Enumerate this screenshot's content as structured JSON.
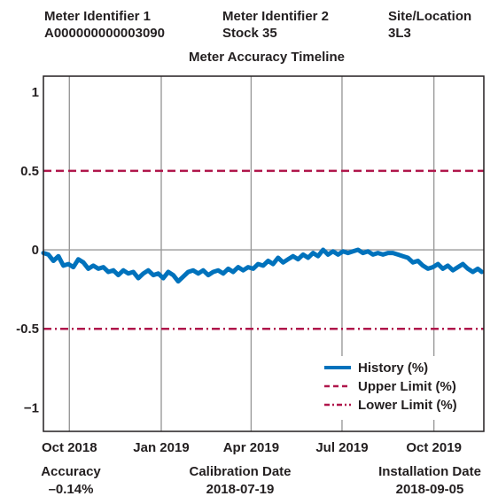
{
  "header": [
    {
      "label": "Meter Identifier 1",
      "value": "A000000000003090"
    },
    {
      "label": "Meter Identifier 2",
      "value": "Stock 35"
    },
    {
      "label": "Site/Location",
      "value": "3L3"
    }
  ],
  "footer": [
    {
      "label": "Accuracy",
      "value": "–0.14%"
    },
    {
      "label": "Calibration Date",
      "value": "2018-07-19"
    },
    {
      "label": "Installation Date",
      "value": "2018-09-05"
    }
  ],
  "colors": {
    "history": "#0072bc",
    "limit": "#b0164b",
    "grid": "#9a9a9a"
  },
  "chart_data": {
    "type": "line",
    "title": "Meter Accuracy Timeline",
    "xlabel": "",
    "ylabel": "",
    "xlim": [
      "2018-09-05",
      "2019-11-20"
    ],
    "ylim": [
      -1.15,
      1.1
    ],
    "x_ticks": [
      {
        "date": "2018-10-01",
        "label": "Oct 2018"
      },
      {
        "date": "2019-01-01",
        "label": "Jan 2019"
      },
      {
        "date": "2019-04-01",
        "label": "Apr 2019"
      },
      {
        "date": "2019-07-01",
        "label": "Jul 2019"
      },
      {
        "date": "2019-10-01",
        "label": "Oct 2019"
      }
    ],
    "y_ticks": [
      {
        "value": 1,
        "label": "1"
      },
      {
        "value": 0.5,
        "label": "0.5"
      },
      {
        "value": 0,
        "label": "0"
      },
      {
        "value": -0.5,
        "label": "-0.5"
      },
      {
        "value": -1,
        "label": "−1"
      }
    ],
    "grid": true,
    "legend_position": "bottom-right",
    "series": [
      {
        "name": "History (%)",
        "style": "solid",
        "x": [
          "2018-09-05",
          "2018-09-10",
          "2018-09-15",
          "2018-09-20",
          "2018-09-25",
          "2018-09-30",
          "2018-10-05",
          "2018-10-10",
          "2018-10-15",
          "2018-10-20",
          "2018-10-25",
          "2018-10-30",
          "2018-11-04",
          "2018-11-09",
          "2018-11-14",
          "2018-11-19",
          "2018-11-24",
          "2018-11-29",
          "2018-12-04",
          "2018-12-09",
          "2018-12-14",
          "2018-12-19",
          "2018-12-24",
          "2018-12-29",
          "2019-01-03",
          "2019-01-08",
          "2019-01-13",
          "2019-01-18",
          "2019-01-23",
          "2019-01-28",
          "2019-02-02",
          "2019-02-07",
          "2019-02-12",
          "2019-02-17",
          "2019-02-22",
          "2019-02-27",
          "2019-03-04",
          "2019-03-09",
          "2019-03-14",
          "2019-03-19",
          "2019-03-24",
          "2019-03-29",
          "2019-04-03",
          "2019-04-08",
          "2019-04-13",
          "2019-04-18",
          "2019-04-23",
          "2019-04-28",
          "2019-05-03",
          "2019-05-08",
          "2019-05-13",
          "2019-05-18",
          "2019-05-23",
          "2019-05-28",
          "2019-06-02",
          "2019-06-07",
          "2019-06-12",
          "2019-06-17",
          "2019-06-22",
          "2019-06-27",
          "2019-07-02",
          "2019-07-07",
          "2019-07-12",
          "2019-07-17",
          "2019-07-22",
          "2019-07-27",
          "2019-08-01",
          "2019-08-06",
          "2019-08-11",
          "2019-08-16",
          "2019-08-21",
          "2019-08-26",
          "2019-08-31",
          "2019-09-05",
          "2019-09-10",
          "2019-09-15",
          "2019-09-20",
          "2019-09-25",
          "2019-09-30",
          "2019-10-05",
          "2019-10-10",
          "2019-10-15",
          "2019-10-20",
          "2019-10-25",
          "2019-10-30",
          "2019-11-04",
          "2019-11-09",
          "2019-11-14",
          "2019-11-18"
        ],
        "y": [
          -0.02,
          -0.03,
          -0.07,
          -0.04,
          -0.1,
          -0.09,
          -0.11,
          -0.06,
          -0.08,
          -0.12,
          -0.1,
          -0.12,
          -0.11,
          -0.14,
          -0.13,
          -0.16,
          -0.13,
          -0.15,
          -0.14,
          -0.18,
          -0.15,
          -0.13,
          -0.16,
          -0.15,
          -0.18,
          -0.14,
          -0.16,
          -0.2,
          -0.17,
          -0.14,
          -0.13,
          -0.15,
          -0.13,
          -0.16,
          -0.14,
          -0.13,
          -0.15,
          -0.12,
          -0.14,
          -0.11,
          -0.13,
          -0.11,
          -0.12,
          -0.09,
          -0.1,
          -0.07,
          -0.09,
          -0.05,
          -0.08,
          -0.06,
          -0.04,
          -0.06,
          -0.03,
          -0.05,
          -0.02,
          -0.04,
          0.0,
          -0.03,
          -0.01,
          -0.03,
          -0.01,
          -0.02,
          -0.01,
          0.0,
          -0.02,
          -0.01,
          -0.03,
          -0.02,
          -0.03,
          -0.02,
          -0.02,
          -0.03,
          -0.04,
          -0.05,
          -0.08,
          -0.07,
          -0.1,
          -0.12,
          -0.11,
          -0.09,
          -0.12,
          -0.1,
          -0.13,
          -0.11,
          -0.09,
          -0.12,
          -0.14,
          -0.12,
          -0.14
        ]
      },
      {
        "name": "Upper Limit (%)",
        "style": "dashed",
        "x": [
          "2018-09-05",
          "2019-11-20"
        ],
        "y": [
          0.5,
          0.5
        ]
      },
      {
        "name": "Lower Limit (%)",
        "style": "dashdot",
        "x": [
          "2018-09-05",
          "2019-11-20"
        ],
        "y": [
          -0.5,
          -0.5
        ]
      }
    ]
  }
}
